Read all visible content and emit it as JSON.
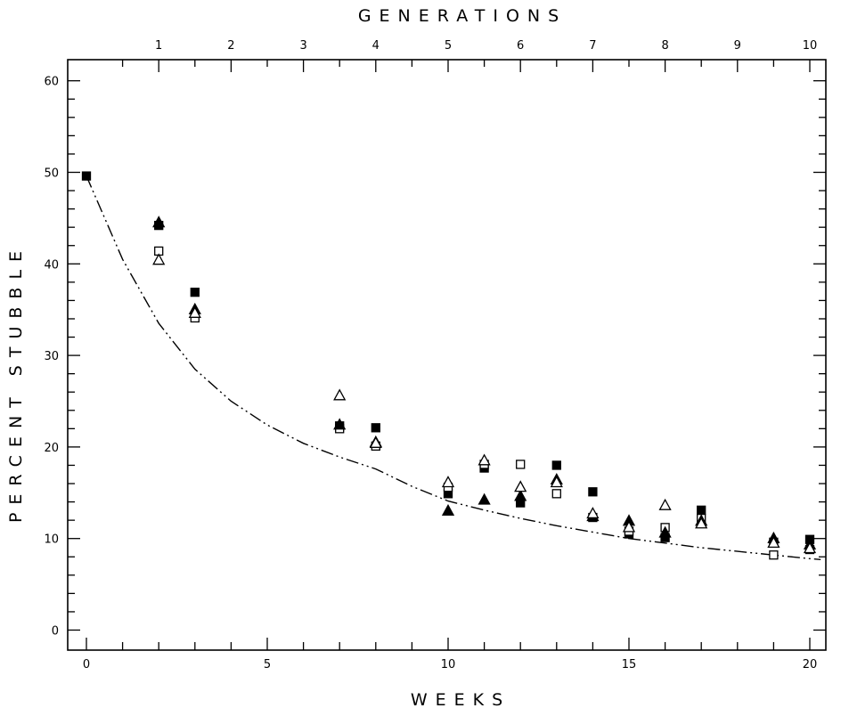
{
  "chart_data": {
    "type": "scatter",
    "title": "",
    "xlabel": "WEEKS",
    "ylabel": "PERCENT STUBBLE",
    "x2label": "GENERATIONS",
    "xlim": [
      -0.4,
      20.8
    ],
    "ylim": [
      -2.5,
      63
    ],
    "x_ticks": [
      0,
      5,
      10,
      15,
      20
    ],
    "y_ticks": [
      0,
      10,
      20,
      30,
      40,
      50,
      60
    ],
    "x2_ticks": [
      {
        "label": "1",
        "week": 2
      },
      {
        "label": "2",
        "week": 4
      },
      {
        "label": "3",
        "week": 6
      },
      {
        "label": "4",
        "week": 8
      },
      {
        "label": "5",
        "week": 10
      },
      {
        "label": "6",
        "week": 12
      },
      {
        "label": "7",
        "week": 14
      },
      {
        "label": "8",
        "week": 16
      },
      {
        "label": "9",
        "week": 18
      },
      {
        "label": "10",
        "week": 20
      }
    ],
    "grid": false,
    "legend": "none",
    "series": [
      {
        "marker": "filled-square",
        "points": [
          [
            0,
            49.6
          ],
          [
            2,
            44.2
          ],
          [
            3,
            36.9
          ],
          [
            7,
            22.3
          ],
          [
            8,
            22.1
          ],
          [
            10,
            14.9
          ],
          [
            11,
            17.7
          ],
          [
            12,
            13.9
          ],
          [
            13,
            18.0
          ],
          [
            14,
            15.1
          ],
          [
            15,
            10.5
          ],
          [
            16,
            10.1
          ],
          [
            17,
            13.1
          ],
          [
            19,
            9.6
          ],
          [
            20,
            9.9
          ]
        ]
      },
      {
        "marker": "open-square",
        "points": [
          [
            2,
            41.4
          ],
          [
            3,
            34.1
          ],
          [
            7,
            22.0
          ],
          [
            8,
            20.1
          ],
          [
            10,
            15.6
          ],
          [
            11,
            18.1
          ],
          [
            12,
            18.1
          ],
          [
            13,
            14.9
          ],
          [
            14,
            12.3
          ],
          [
            15,
            10.8
          ],
          [
            16,
            11.2
          ],
          [
            17,
            12.2
          ],
          [
            19,
            8.2
          ],
          [
            20,
            8.8
          ]
        ]
      },
      {
        "marker": "filled-triangle",
        "points": [
          [
            2,
            44.5
          ],
          [
            3,
            35.0
          ],
          [
            7,
            22.4
          ],
          [
            8,
            20.5
          ],
          [
            10,
            13.0
          ],
          [
            11,
            14.2
          ],
          [
            12,
            14.6
          ],
          [
            13,
            16.4
          ],
          [
            14,
            12.4
          ],
          [
            15,
            11.9
          ],
          [
            16,
            10.6
          ],
          [
            17,
            11.9
          ],
          [
            19,
            10.0
          ],
          [
            20,
            9.3
          ]
        ]
      },
      {
        "marker": "open-triangle",
        "points": [
          [
            2,
            40.4
          ],
          [
            3,
            34.6
          ],
          [
            7,
            25.6
          ],
          [
            8,
            20.4
          ],
          [
            10,
            16.1
          ],
          [
            11,
            18.5
          ],
          [
            12,
            15.6
          ],
          [
            13,
            16.1
          ],
          [
            14,
            12.7
          ],
          [
            15,
            11.2
          ],
          [
            16,
            13.6
          ],
          [
            17,
            11.6
          ],
          [
            19,
            9.5
          ],
          [
            20,
            8.9
          ]
        ]
      }
    ],
    "fit_curve": {
      "style": "dash-dot-dot",
      "points": [
        [
          0,
          49.6
        ],
        [
          1,
          40.5
        ],
        [
          2,
          33.5
        ],
        [
          3,
          28.5
        ],
        [
          4,
          25.0
        ],
        [
          5,
          22.4
        ],
        [
          6,
          20.4
        ],
        [
          7,
          18.9
        ],
        [
          8,
          17.6
        ],
        [
          9,
          15.7
        ],
        [
          10,
          14.1
        ],
        [
          11,
          13.1
        ],
        [
          12,
          12.2
        ],
        [
          13,
          11.4
        ],
        [
          14,
          10.7
        ],
        [
          15,
          10.0
        ],
        [
          16,
          9.5
        ],
        [
          17,
          9.0
        ],
        [
          18,
          8.6
        ],
        [
          19,
          8.2
        ],
        [
          20,
          7.8
        ],
        [
          20.3,
          7.7
        ]
      ]
    }
  }
}
